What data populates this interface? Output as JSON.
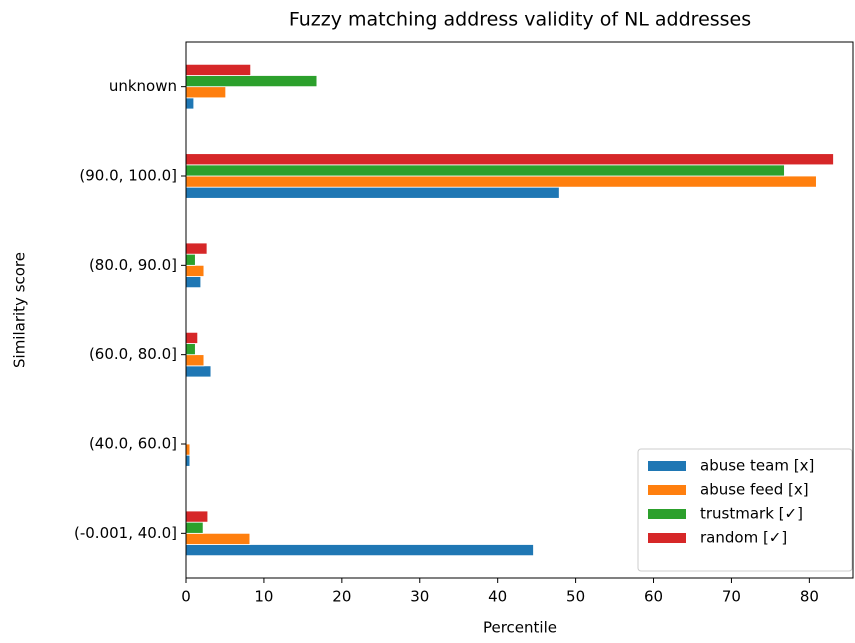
{
  "chart_data": {
    "type": "barh",
    "title": "Fuzzy matching address validity of NL addresses",
    "xlabel": "Percentile",
    "ylabel": "Similarity score",
    "categories": [
      "(-0.001, 40.0]",
      "(40.0, 60.0]",
      "(60.0, 80.0]",
      "(80.0, 90.0]",
      "(90.0, 100.0]",
      "unknown"
    ],
    "series": [
      {
        "name": "abuse team [x]",
        "color": "#1f77b4",
        "values": [
          44.6,
          0.5,
          3.2,
          1.9,
          47.9,
          1.0
        ]
      },
      {
        "name": "abuse feed [x]",
        "color": "#ff7f0e",
        "values": [
          8.2,
          0.5,
          2.3,
          2.3,
          80.9,
          5.1
        ]
      },
      {
        "name": "trustmark [✓]",
        "color": "#2ca02c",
        "values": [
          2.2,
          0,
          1.2,
          1.2,
          76.8,
          16.8
        ]
      },
      {
        "name": "random [✓]",
        "color": "#d62728",
        "values": [
          2.8,
          0,
          1.5,
          2.7,
          83.1,
          8.3
        ]
      }
    ],
    "xlim": [
      0,
      85.6
    ],
    "xticks": [
      0,
      10,
      20,
      30,
      40,
      50,
      60,
      70,
      80
    ],
    "legend": "lower right"
  }
}
